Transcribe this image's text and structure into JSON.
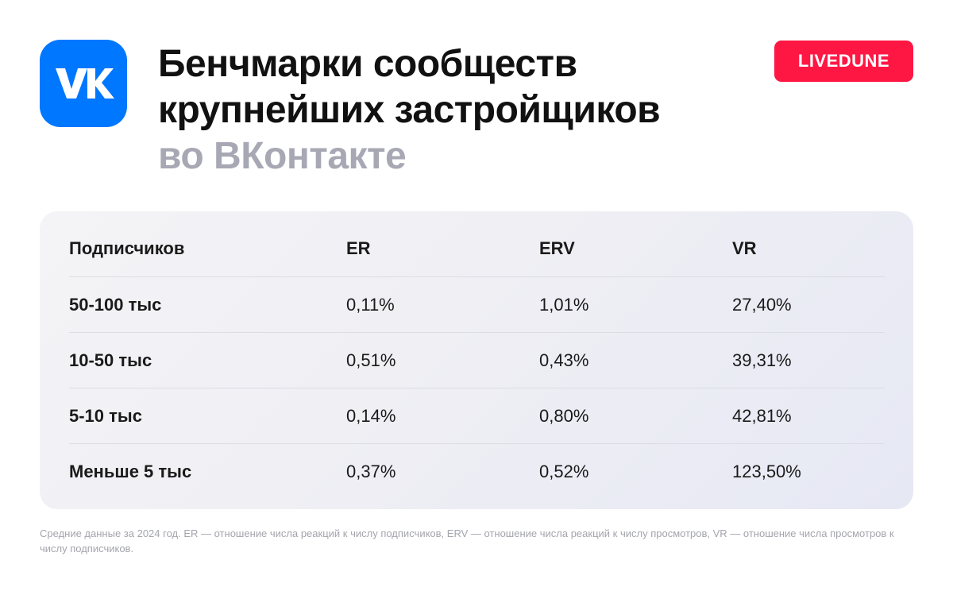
{
  "header": {
    "logo_icon": "vk-logo-icon",
    "title_line1": "Бенчмарки сообществ",
    "title_line2": "крупнейших застройщиков",
    "subtitle": "во ВКонтакте",
    "brand_badge": "LIVEDUNE"
  },
  "colors": {
    "vk_blue": "#0077ff",
    "badge_red": "#ff1744",
    "subtitle_gray": "#a7a8b3"
  },
  "table": {
    "columns": [
      "Подписчиков",
      "ER",
      "ERV",
      "VR"
    ],
    "rows": [
      [
        "50-100 тыс",
        "0,11%",
        "1,01%",
        "27,40%"
      ],
      [
        "10-50 тыс",
        "0,51%",
        "0,43%",
        "39,31%"
      ],
      [
        "5-10 тыс",
        "0,14%",
        "0,80%",
        "42,81%"
      ],
      [
        "Меньше 5 тыс",
        "0,37%",
        "0,52%",
        "123,50%"
      ]
    ]
  },
  "footnote": "Средние данные за 2024 год. ER — отношение числа реакций к числу подписчиков, ERV — отношение числа реакций к числу просмотров, VR — отношение числа просмотров к числу подписчиков."
}
